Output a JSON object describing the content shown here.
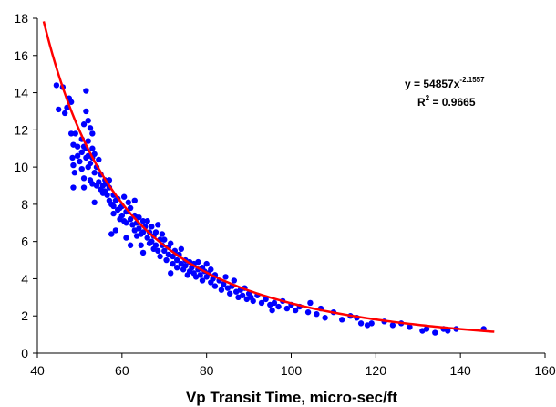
{
  "chart_data": {
    "type": "scatter",
    "title": "",
    "xlabel": "Vp Transit Time, micro-sec/ft",
    "ylabel": "",
    "xlim": [
      40,
      160
    ],
    "ylim": [
      0,
      18
    ],
    "x_ticks": [
      "40",
      "60",
      "80",
      "100",
      "120",
      "140",
      "160"
    ],
    "y_ticks": [
      "0",
      "2",
      "4",
      "6",
      "8",
      "10",
      "12",
      "14",
      "16",
      "18"
    ],
    "grid": false,
    "point_color": "#0000ff",
    "curve_color": "#ff0000",
    "trendline": {
      "type": "power",
      "a": 54857,
      "b": -2.1557,
      "x_range": [
        41.5,
        148
      ],
      "equation_prefix": "y = 54857x",
      "equation_exponent": "-2.1557",
      "r2_prefix": "R",
      "r2_exponent": "2",
      "r2_suffix": " = 0.9665"
    },
    "points": [
      [
        44.5,
        14.4
      ],
      [
        45,
        13.1
      ],
      [
        46,
        14.3
      ],
      [
        46.5,
        12.9
      ],
      [
        47,
        13.2
      ],
      [
        47.5,
        13.7
      ],
      [
        48,
        13.5
      ],
      [
        48,
        11.8
      ],
      [
        48.3,
        10.5
      ],
      [
        48.5,
        11.2
      ],
      [
        48.5,
        10.1
      ],
      [
        48.8,
        9.7
      ],
      [
        48.5,
        8.9
      ],
      [
        49,
        11.8
      ],
      [
        49.5,
        11.1
      ],
      [
        49.5,
        10.6
      ],
      [
        50,
        10.3
      ],
      [
        50.5,
        11.5
      ],
      [
        50.5,
        10.8
      ],
      [
        50.5,
        9.9
      ],
      [
        51,
        12.3
      ],
      [
        51,
        11.1
      ],
      [
        51,
        9.4
      ],
      [
        51,
        8.9
      ],
      [
        51.5,
        14.1
      ],
      [
        51.5,
        13.0
      ],
      [
        51.5,
        11.0
      ],
      [
        51.5,
        10.5
      ],
      [
        52,
        12.5
      ],
      [
        52,
        11.4
      ],
      [
        52,
        10.6
      ],
      [
        52,
        10.0
      ],
      [
        52.5,
        12.1
      ],
      [
        52.5,
        10.2
      ],
      [
        52.5,
        9.3
      ],
      [
        53,
        11.8
      ],
      [
        53,
        11.0
      ],
      [
        53,
        10.5
      ],
      [
        53,
        9.1
      ],
      [
        53.5,
        10.7
      ],
      [
        53.5,
        9.7
      ],
      [
        53.5,
        8.1
      ],
      [
        54,
        10.0
      ],
      [
        54,
        9.0
      ],
      [
        54.5,
        10.4
      ],
      [
        54.5,
        9.2
      ],
      [
        55,
        9.6
      ],
      [
        55,
        8.8
      ],
      [
        55.5,
        9.0
      ],
      [
        55.5,
        8.6
      ],
      [
        56,
        9.3
      ],
      [
        56,
        8.7
      ],
      [
        56.5,
        8.5
      ],
      [
        56.5,
        9.1
      ],
      [
        57,
        8.2
      ],
      [
        57,
        8.9
      ],
      [
        57,
        9.3
      ],
      [
        57.5,
        8.0
      ],
      [
        57.5,
        6.4
      ],
      [
        58,
        8.5
      ],
      [
        58,
        7.5
      ],
      [
        58,
        7.9
      ],
      [
        58.5,
        6.6
      ],
      [
        58.5,
        8.2
      ],
      [
        59,
        7.7
      ],
      [
        59,
        8.3
      ],
      [
        59.5,
        7.2
      ],
      [
        59.5,
        7.8
      ],
      [
        60,
        7.4
      ],
      [
        60,
        7.9
      ],
      [
        60.5,
        8.4
      ],
      [
        60.5,
        7.1
      ],
      [
        61,
        7.6
      ],
      [
        61,
        7.0
      ],
      [
        61,
        6.2
      ],
      [
        61.5,
        8.1
      ],
      [
        62,
        7.2
      ],
      [
        62,
        7.8
      ],
      [
        62,
        5.8
      ],
      [
        62.5,
        6.9
      ],
      [
        63,
        7.4
      ],
      [
        63,
        6.6
      ],
      [
        63,
        8.2
      ],
      [
        63.5,
        7.0
      ],
      [
        63.5,
        6.3
      ],
      [
        64,
        7.3
      ],
      [
        64,
        6.7
      ],
      [
        64.5,
        5.8
      ],
      [
        64.5,
        6.4
      ],
      [
        65,
        7.1
      ],
      [
        65,
        6.5
      ],
      [
        65,
        5.4
      ],
      [
        65.5,
        6.8
      ],
      [
        66,
        6.2
      ],
      [
        66,
        7.1
      ],
      [
        66.5,
        5.9
      ],
      [
        66.5,
        6.5
      ],
      [
        67,
        6.8
      ],
      [
        67,
        6.0
      ],
      [
        67.5,
        5.6
      ],
      [
        67.5,
        6.3
      ],
      [
        68,
        6.5
      ],
      [
        68,
        5.8
      ],
      [
        68.5,
        6.9
      ],
      [
        68.5,
        5.5
      ],
      [
        69,
        6.1
      ],
      [
        69,
        5.2
      ],
      [
        69.5,
        5.8
      ],
      [
        69.5,
        6.4
      ],
      [
        70,
        5.5
      ],
      [
        70,
        6.1
      ],
      [
        70.5,
        5.0
      ],
      [
        71,
        5.7
      ],
      [
        71,
        5.3
      ],
      [
        71.5,
        5.9
      ],
      [
        71.5,
        4.3
      ],
      [
        72,
        5.2
      ],
      [
        72,
        4.8
      ],
      [
        72.5,
        5.5
      ],
      [
        73,
        5.0
      ],
      [
        73,
        4.6
      ],
      [
        73.5,
        5.3
      ],
      [
        74,
        4.8
      ],
      [
        74,
        5.6
      ],
      [
        74.5,
        4.5
      ],
      [
        75,
        5.0
      ],
      [
        75,
        4.7
      ],
      [
        75.5,
        4.2
      ],
      [
        76,
        4.9
      ],
      [
        76,
        4.4
      ],
      [
        76.5,
        4.6
      ],
      [
        77,
        4.3
      ],
      [
        77,
        4.8
      ],
      [
        77.5,
        4.1
      ],
      [
        78,
        4.5
      ],
      [
        78,
        4.9
      ],
      [
        78.5,
        4.2
      ],
      [
        79,
        4.6
      ],
      [
        79,
        3.9
      ],
      [
        79.5,
        4.4
      ],
      [
        80,
        4.1
      ],
      [
        80,
        4.8
      ],
      [
        80.5,
        4.3
      ],
      [
        81,
        3.8
      ],
      [
        81,
        4.5
      ],
      [
        81.5,
        4.0
      ],
      [
        82,
        4.2
      ],
      [
        82,
        3.6
      ],
      [
        83,
        3.9
      ],
      [
        83.5,
        3.4
      ],
      [
        84,
        3.7
      ],
      [
        84.5,
        4.1
      ],
      [
        85,
        3.5
      ],
      [
        85.5,
        3.2
      ],
      [
        86,
        3.6
      ],
      [
        86.5,
        3.9
      ],
      [
        87,
        3.3
      ],
      [
        87.5,
        3.0
      ],
      [
        88,
        3.4
      ],
      [
        88.5,
        3.1
      ],
      [
        89,
        3.5
      ],
      [
        89.5,
        2.9
      ],
      [
        90,
        3.2
      ],
      [
        90.5,
        3.0
      ],
      [
        91,
        2.8
      ],
      [
        92,
        3.1
      ],
      [
        93,
        2.7
      ],
      [
        94,
        2.9
      ],
      [
        95,
        2.6
      ],
      [
        95.5,
        2.3
      ],
      [
        96,
        2.7
      ],
      [
        97,
        2.5
      ],
      [
        98,
        2.8
      ],
      [
        99,
        2.4
      ],
      [
        100,
        2.6
      ],
      [
        101,
        2.3
      ],
      [
        102,
        2.5
      ],
      [
        104,
        2.2
      ],
      [
        104.5,
        2.7
      ],
      [
        106,
        2.1
      ],
      [
        107,
        2.4
      ],
      [
        108,
        1.9
      ],
      [
        110,
        2.2
      ],
      [
        112,
        1.8
      ],
      [
        114,
        2.0
      ],
      [
        115.5,
        1.9
      ],
      [
        116.5,
        1.6
      ],
      [
        118,
        1.5
      ],
      [
        119,
        1.6
      ],
      [
        122,
        1.7
      ],
      [
        124,
        1.5
      ],
      [
        126,
        1.6
      ],
      [
        128,
        1.4
      ],
      [
        131,
        1.2
      ],
      [
        132,
        1.3
      ],
      [
        134,
        1.1
      ],
      [
        136,
        1.3
      ],
      [
        137,
        1.2
      ],
      [
        139,
        1.3
      ],
      [
        145.5,
        1.3
      ]
    ]
  }
}
